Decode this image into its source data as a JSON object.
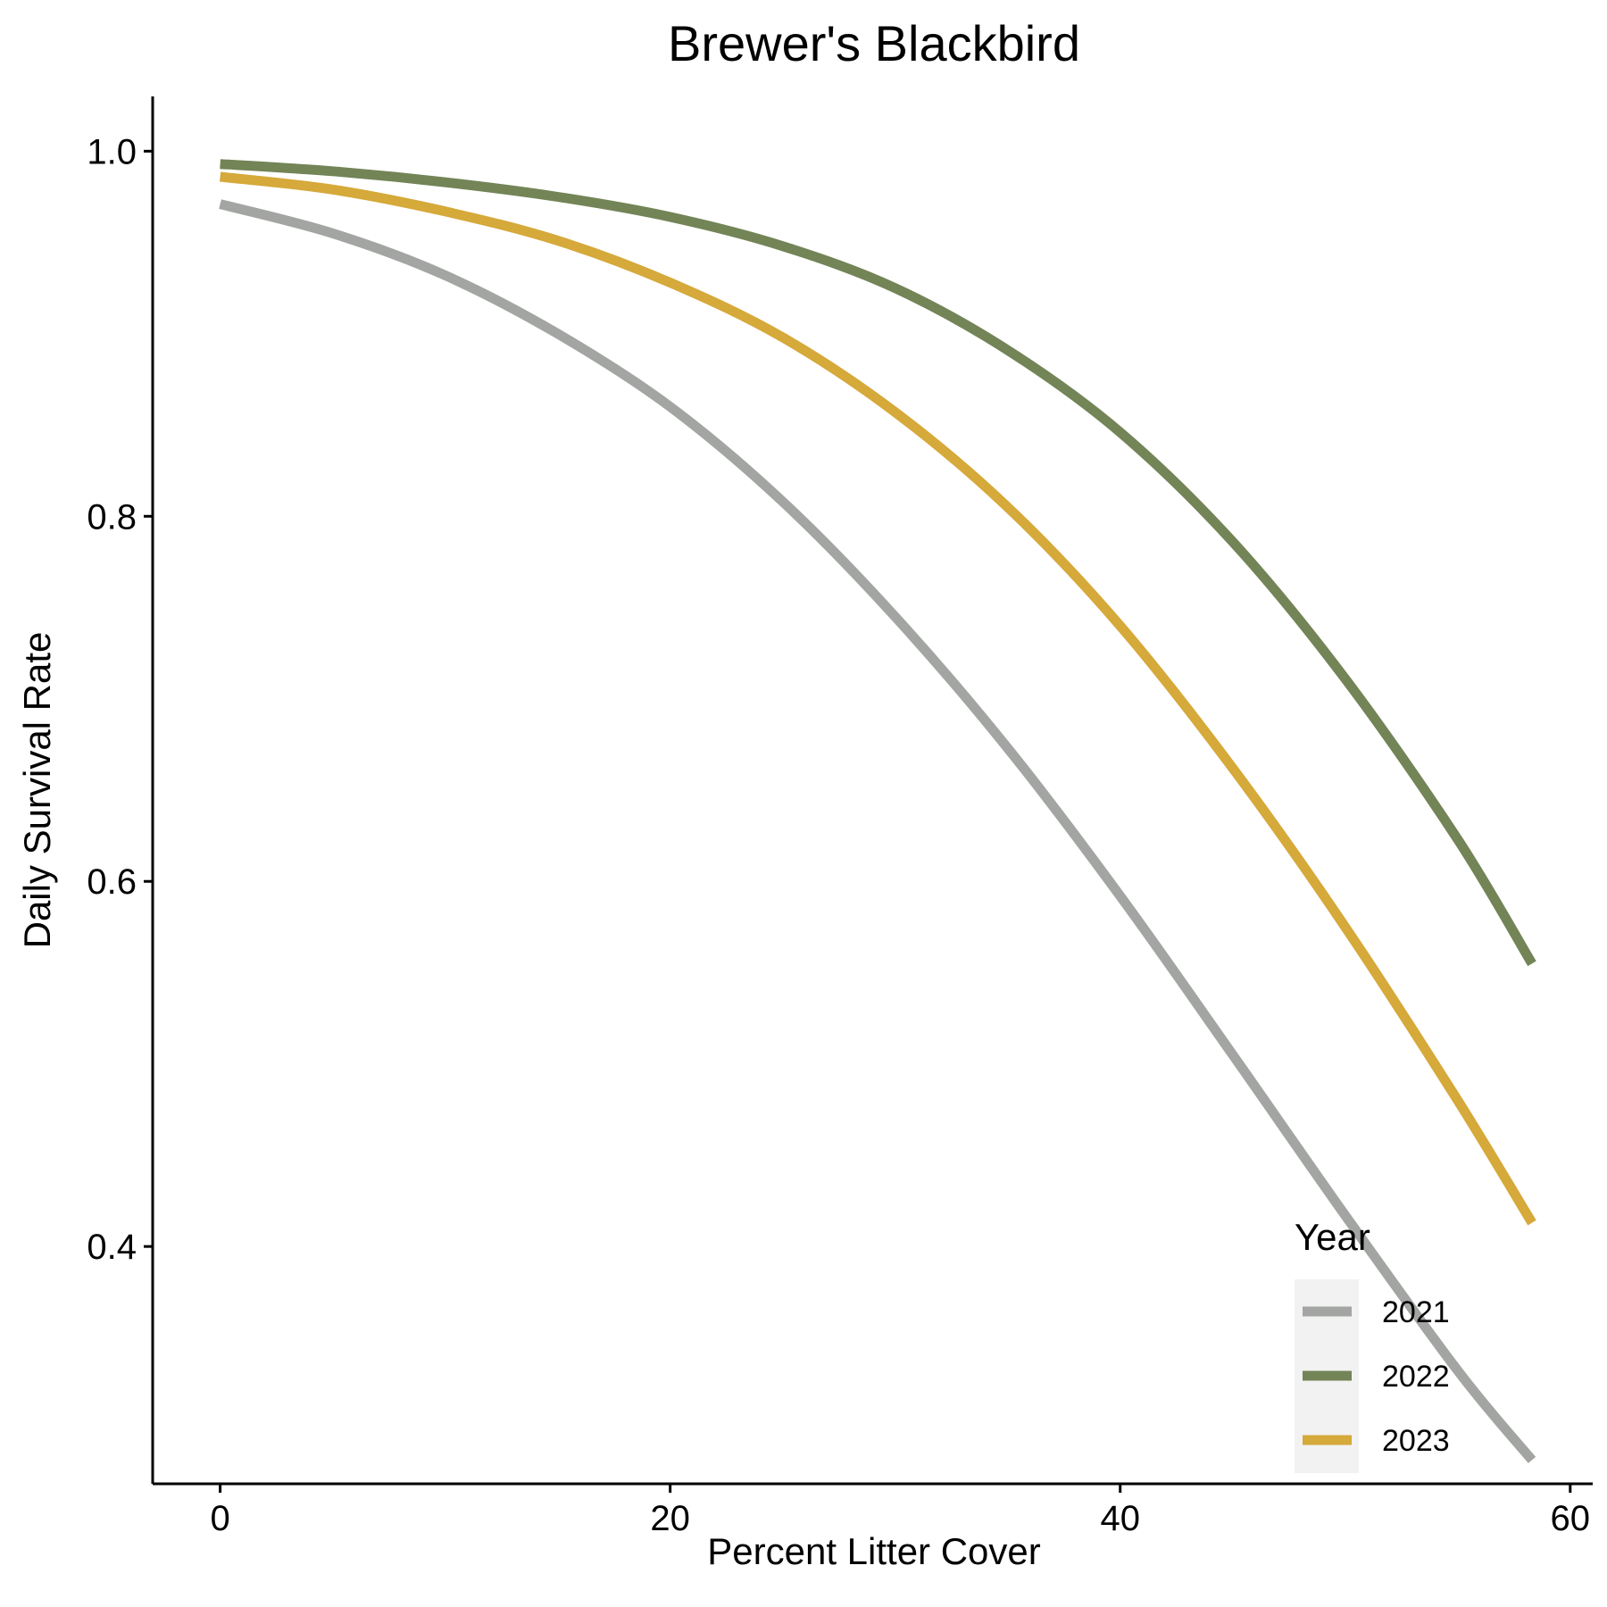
{
  "chart_data": {
    "type": "line",
    "title": "Brewer's Blackbird",
    "xlabel": "Percent Litter Cover",
    "ylabel": "Daily Survival Rate",
    "xlim": [
      -3,
      61
    ],
    "ylim": [
      0.27,
      1.03
    ],
    "x_ticks": [
      0,
      20,
      40,
      60
    ],
    "y_ticks": [
      0.4,
      0.6,
      0.8,
      1.0
    ],
    "x_tick_labels": [
      "0",
      "20",
      "40",
      "60"
    ],
    "y_tick_labels": [
      "0.4",
      "0.6",
      "0.8",
      "1.0"
    ],
    "grid": false,
    "legend": {
      "title": "Year",
      "position": "bottom-right, inside plot"
    },
    "series": [
      {
        "name": "2021",
        "color": "#a3a5a2",
        "x": [
          0,
          5,
          10,
          15,
          20,
          25,
          30,
          35,
          40,
          45,
          50,
          55,
          58.3
        ],
        "values": [
          0.971,
          0.955,
          0.932,
          0.9,
          0.86,
          0.808,
          0.745,
          0.673,
          0.592,
          0.505,
          0.417,
          0.332,
          0.283
        ]
      },
      {
        "name": "2022",
        "color": "#738457",
        "x": [
          0,
          5,
          10,
          15,
          20,
          25,
          30,
          35,
          40,
          45,
          50,
          55,
          58.3
        ],
        "values": [
          0.993,
          0.989,
          0.983,
          0.975,
          0.964,
          0.948,
          0.925,
          0.891,
          0.846,
          0.786,
          0.711,
          0.623,
          0.555
        ]
      },
      {
        "name": "2023",
        "color": "#d5a93a",
        "x": [
          0,
          5,
          10,
          15,
          20,
          25,
          30,
          35,
          40,
          45,
          50,
          55,
          58.3
        ],
        "values": [
          0.986,
          0.979,
          0.967,
          0.951,
          0.928,
          0.898,
          0.857,
          0.805,
          0.74,
          0.662,
          0.575,
          0.48,
          0.413
        ]
      }
    ]
  }
}
